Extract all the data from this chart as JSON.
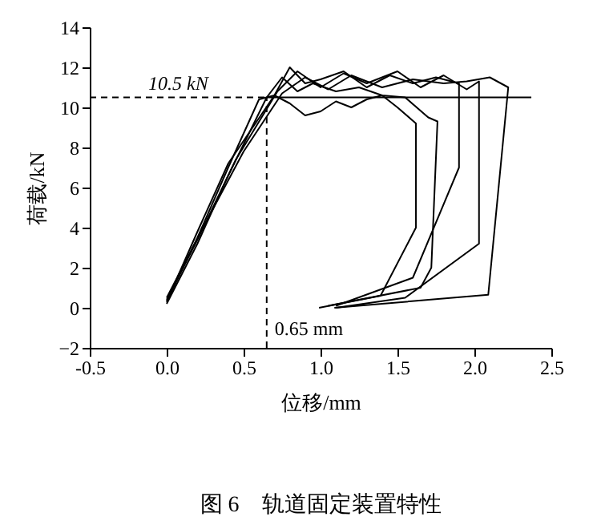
{
  "chart_data": {
    "type": "line",
    "title": "图 6　轨道固定装置特性",
    "xlabel": "位移/mm",
    "ylabel": "荷载/kN",
    "xlim": [
      -0.5,
      2.5
    ],
    "xticks": [
      {
        "value": -0.5,
        "label": "-0.5"
      },
      {
        "value": 0,
        "label": "0.0"
      },
      {
        "value": 0.5,
        "label": "0.5"
      },
      {
        "value": 1,
        "label": "1.0"
      },
      {
        "value": 1.5,
        "label": "1.5"
      },
      {
        "value": 2,
        "label": "2.0"
      },
      {
        "value": 2.5,
        "label": "2.5"
      }
    ],
    "ylim": [
      -2,
      14
    ],
    "yticks": [
      -2,
      0,
      2,
      4,
      6,
      8,
      10,
      12,
      14
    ],
    "grid": false,
    "line_style": "solid",
    "series": [
      {
        "color": "#000000",
        "x": [
          0,
          0.2,
          0.4,
          0.6,
          0.7,
          0.8,
          0.9,
          1.0,
          1.1,
          1.2,
          1.3,
          1.4,
          1.5,
          1.62,
          1.62,
          1.39,
          0.99
        ],
        "values": [
          0.3,
          3.5,
          7,
          10.4,
          10.6,
          10.2,
          9.6,
          9.8,
          10.3,
          10.0,
          10.4,
          10.6,
          10.0,
          9.2,
          4.0,
          0.6,
          0
        ]
      },
      {
        "color": "#000000",
        "x": [
          0,
          0.2,
          0.4,
          0.65,
          0.75,
          0.85,
          0.95,
          1.1,
          1.25,
          1.4,
          1.55,
          1.7,
          1.76,
          1.72,
          1.65,
          1.05
        ],
        "values": [
          0.2,
          3.2,
          6.6,
          10.5,
          11.5,
          10.8,
          11.2,
          10.8,
          11.0,
          10.6,
          10.5,
          9.5,
          9.3,
          2,
          1,
          0.1
        ]
      },
      {
        "color": "#000000",
        "x": [
          0,
          0.2,
          0.4,
          0.7,
          0.8,
          0.9,
          1.0,
          1.15,
          1.3,
          1.45,
          1.6,
          1.75,
          1.9,
          1.9,
          1.6,
          1.1
        ],
        "values": [
          0.3,
          3.8,
          7.2,
          10.6,
          12.0,
          11.2,
          11.4,
          11.8,
          11.0,
          11.6,
          11.2,
          11.5,
          11.2,
          7,
          1.5,
          0.1
        ]
      },
      {
        "color": "#000000",
        "x": [
          0,
          0.2,
          0.45,
          0.72,
          0.85,
          1.0,
          1.15,
          1.3,
          1.5,
          1.65,
          1.8,
          1.95,
          2.03,
          2.03,
          1.55,
          1.1
        ],
        "values": [
          0.4,
          3.4,
          7.4,
          10.8,
          11.8,
          11.0,
          11.7,
          11.2,
          11.8,
          11.0,
          11.6,
          10.9,
          11.3,
          3.2,
          0.5,
          0
        ]
      },
      {
        "color": "#000000",
        "x": [
          0,
          0.25,
          0.5,
          0.75,
          0.9,
          1.05,
          1.2,
          1.4,
          1.6,
          1.8,
          1.95,
          2.1,
          2.22,
          2.09,
          1.09
        ],
        "values": [
          0.5,
          4.2,
          7.8,
          10.7,
          11.5,
          10.9,
          11.6,
          11.0,
          11.4,
          11.2,
          11.3,
          11.5,
          11.0,
          0.65,
          0
        ]
      },
      {
        "color": "#000000",
        "x": [
          0.65,
          2.37
        ],
        "values": [
          10.5,
          10.5
        ]
      }
    ],
    "ref_lines": [
      {
        "axis": "y",
        "value": 10.5,
        "label": "10.5 kN",
        "line_style": "dashed"
      },
      {
        "axis": "x",
        "value": 0.65,
        "label": "0.65 mm",
        "line_style": "dashed"
      }
    ]
  }
}
